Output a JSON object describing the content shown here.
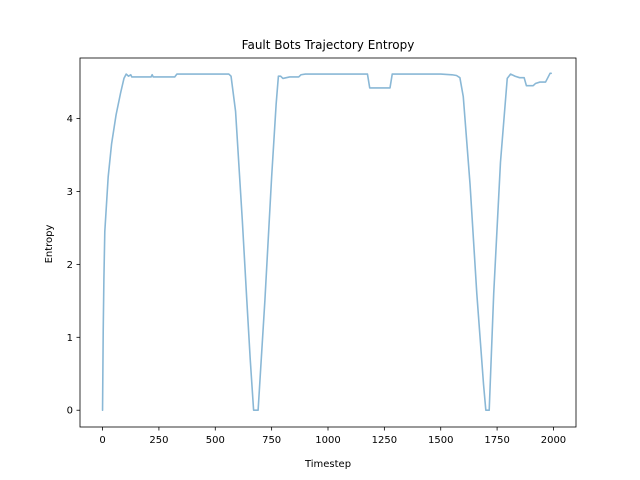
{
  "chart_data": {
    "type": "line",
    "title": "Fault Bots Trajectory Entropy",
    "xlabel": "Timestep",
    "ylabel": "Entropy",
    "xlim": [
      -100,
      2100
    ],
    "ylim": [
      -0.23,
      4.83
    ],
    "x_ticks": [
      0,
      250,
      500,
      750,
      1000,
      1250,
      1500,
      1750,
      2000
    ],
    "y_ticks": [
      0,
      1,
      2,
      3,
      4
    ],
    "grid": false,
    "legend": "none",
    "series": [
      {
        "color": "#8ab8d6",
        "x": [
          0,
          3,
          6,
          10,
          15,
          25,
          40,
          60,
          80,
          95,
          105,
          115,
          125,
          130,
          215,
          220,
          225,
          320,
          330,
          560,
          570,
          590,
          620,
          640,
          655,
          670,
          690,
          720,
          750,
          770,
          780,
          790,
          800,
          830,
          870,
          880,
          900,
          1175,
          1185,
          1195,
          1275,
          1285,
          1295,
          1500,
          1550,
          1570,
          1585,
          1600,
          1630,
          1660,
          1690,
          1700,
          1705,
          1715,
          1735,
          1765,
          1795,
          1810,
          1830,
          1850,
          1870,
          1880,
          1885,
          1890,
          1910,
          1920,
          1940,
          1960,
          1965,
          1985,
          1990
        ],
        "y": [
          0,
          1.1,
          1.8,
          2.45,
          2.7,
          3.2,
          3.65,
          4.05,
          4.35,
          4.55,
          4.61,
          4.58,
          4.6,
          4.57,
          4.57,
          4.6,
          4.57,
          4.57,
          4.61,
          4.61,
          4.58,
          4.1,
          2.6,
          1.5,
          0.7,
          0,
          0,
          1.5,
          3.2,
          4.2,
          4.58,
          4.58,
          4.55,
          4.57,
          4.57,
          4.6,
          4.61,
          4.61,
          4.42,
          4.42,
          4.42,
          4.61,
          4.61,
          4.61,
          4.6,
          4.59,
          4.56,
          4.3,
          3.1,
          1.6,
          0.35,
          0,
          0,
          0,
          1.6,
          3.4,
          4.55,
          4.61,
          4.58,
          4.56,
          4.56,
          4.45,
          4.45,
          4.45,
          4.45,
          4.48,
          4.5,
          4.5,
          4.5,
          4.62,
          4.62
        ]
      }
    ]
  }
}
